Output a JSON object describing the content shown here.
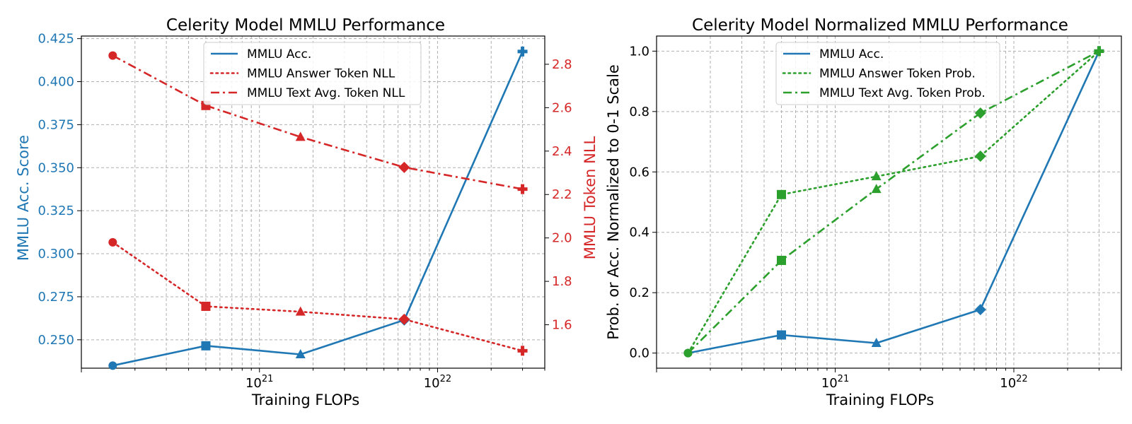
{
  "colors": {
    "blue": "#1f77b4",
    "red": "#d62728",
    "green": "#2ca02c",
    "grid": "#b0b0b0"
  },
  "chart_data": [
    {
      "type": "line",
      "title": "Celerity Model MMLU Performance",
      "xlabel": "Training FLOPs",
      "ylabel": "MMLU Acc. Score",
      "y2label": "MMLU Token NLL",
      "xscale": "log",
      "xlim": [
        1e+20,
        4e+22
      ],
      "ylim": [
        0.2335,
        0.4265
      ],
      "y2lim": [
        1.4,
        2.93
      ],
      "x_tick_labels": [
        {
          "value": 1e+21,
          "base": "10",
          "exp": "21"
        },
        {
          "value": 1e+22,
          "base": "10",
          "exp": "22"
        }
      ],
      "y_ticks": [
        0.25,
        0.275,
        0.3,
        0.325,
        0.35,
        0.375,
        0.4,
        0.425
      ],
      "y_tick_labels": [
        "0.250",
        "0.275",
        "0.300",
        "0.325",
        "0.350",
        "0.375",
        "0.400",
        "0.425"
      ],
      "y2_ticks": [
        1.6,
        1.8,
        2.0,
        2.2,
        2.4,
        2.6,
        2.8
      ],
      "y2_tick_labels": [
        "1.6",
        "1.8",
        "2.0",
        "2.2",
        "2.4",
        "2.6",
        "2.8"
      ],
      "x": [
        1.5e+20,
        5e+20,
        1.7e+21,
        6.5e+21,
        3e+22
      ],
      "series": [
        {
          "name": "MMLU Acc.",
          "axis": "left",
          "color": "#1f77b4",
          "dash": "solid",
          "values": [
            0.235,
            0.2465,
            0.2415,
            0.2615,
            0.4175
          ]
        },
        {
          "name": "MMLU Answer Token NLL",
          "axis": "right",
          "color": "#d62728",
          "dash": "dotted",
          "values": [
            1.98,
            1.685,
            1.66,
            1.625,
            1.48
          ]
        },
        {
          "name": "MMLU Text Avg. Token NLL",
          "axis": "right",
          "color": "#d62728",
          "dash": "dashdot",
          "values": [
            2.84,
            2.61,
            2.465,
            2.325,
            2.225
          ]
        }
      ],
      "markers": [
        "circle",
        "square",
        "triangle",
        "diamond",
        "plus"
      ],
      "legend": "top-center",
      "grid": true
    },
    {
      "type": "line",
      "title": "Celerity Model Normalized MMLU Performance",
      "xlabel": "Training FLOPs",
      "ylabel": "Prob. or Acc. Normalized to 0-1 Scale",
      "xscale": "log",
      "xlim": [
        1e+20,
        4e+22
      ],
      "ylim": [
        -0.05,
        1.05
      ],
      "x_tick_labels": [
        {
          "value": 1e+21,
          "base": "10",
          "exp": "21"
        },
        {
          "value": 1e+22,
          "base": "10",
          "exp": "22"
        }
      ],
      "y_ticks": [
        0.0,
        0.2,
        0.4,
        0.6,
        0.8,
        1.0
      ],
      "y_tick_labels": [
        "0.0",
        "0.2",
        "0.4",
        "0.6",
        "0.8",
        "1.0"
      ],
      "x": [
        1.5e+20,
        5e+20,
        1.7e+21,
        6.5e+21,
        3e+22
      ],
      "series": [
        {
          "name": "MMLU Acc.",
          "axis": "left",
          "color": "#1f77b4",
          "dash": "solid",
          "values": [
            0.0,
            0.06,
            0.033,
            0.144,
            1.0
          ]
        },
        {
          "name": "MMLU Answer Token Prob.",
          "axis": "left",
          "color": "#2ca02c",
          "dash": "dotted",
          "values": [
            0.0,
            0.525,
            0.585,
            0.652,
            1.0
          ]
        },
        {
          "name": "MMLU Text Avg. Token Prob.",
          "axis": "left",
          "color": "#2ca02c",
          "dash": "dashdot",
          "values": [
            0.0,
            0.307,
            0.543,
            0.795,
            1.0
          ]
        }
      ],
      "markers": [
        "circle",
        "square",
        "triangle",
        "diamond",
        "plus"
      ],
      "legend": "top-center",
      "grid": true
    }
  ]
}
